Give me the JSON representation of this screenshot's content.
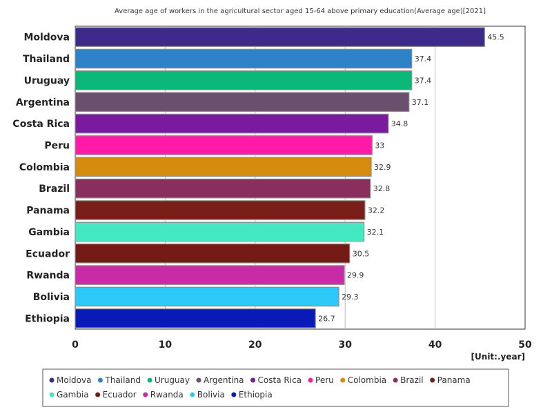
{
  "chart_data": {
    "type": "bar",
    "orientation": "horizontal",
    "title": "Average age of workers in the agricultural sector aged 15-64 above primary education(Average age)[2021]",
    "unit_label": "[Unit:.year]",
    "categories": [
      "Moldova",
      "Thailand",
      "Uruguay",
      "Argentina",
      "Costa Rica",
      "Peru",
      "Colombia",
      "Brazil",
      "Panama",
      "Gambia",
      "Ecuador",
      "Rwanda",
      "Bolivia",
      "Ethiopia"
    ],
    "values": [
      45.5,
      37.4,
      37.4,
      37.1,
      34.8,
      33,
      32.9,
      32.8,
      32.2,
      32.1,
      30.5,
      29.9,
      29.3,
      26.7
    ],
    "value_labels": [
      "45.5",
      "37.4",
      "37.4",
      "37.1",
      "34.8",
      "33",
      "32.9",
      "32.8",
      "32.2",
      "32.1",
      "30.5",
      "29.9",
      "29.3",
      "26.7"
    ],
    "colors": [
      "#3d2a8a",
      "#2e82c8",
      "#0bb87a",
      "#6b4f6e",
      "#7a1a9e",
      "#ff1aa8",
      "#d68a0e",
      "#8a2e5e",
      "#7a1e1a",
      "#44e8c2",
      "#761a16",
      "#c92aa6",
      "#2ec8f8",
      "#0a1ab8"
    ],
    "xlim": [
      0,
      50
    ],
    "xticks": [
      0,
      10,
      20,
      30,
      40,
      50
    ],
    "grid": true,
    "legend_position": "bottom"
  }
}
